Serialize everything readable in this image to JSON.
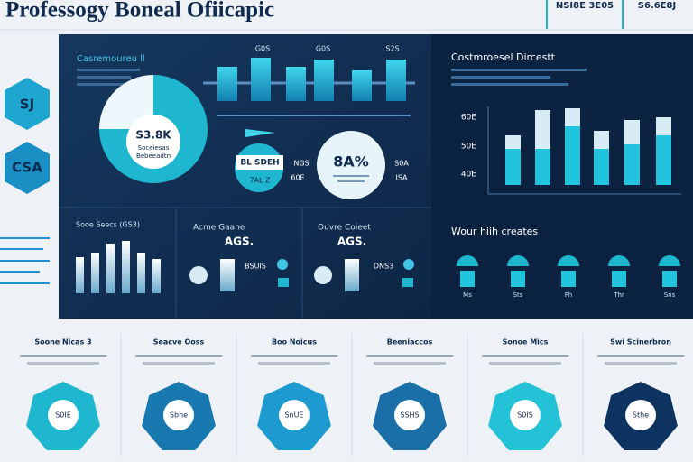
{
  "header": {
    "title": "Professogy Boneal Ofiicapic",
    "stats": [
      "NSI8E 3E05",
      "S6.6E8J"
    ]
  },
  "side": {
    "badges": [
      "SJ",
      "CSA"
    ]
  },
  "overview": {
    "title": "Casremoureu ll",
    "pie": {
      "label": "S3.8K",
      "lines": [
        "Soceiesas",
        "Bebeeadtn"
      ],
      "values": [
        75,
        25
      ]
    },
    "bars": {
      "labels": [
        "G0S",
        "G0S",
        "S2S"
      ],
      "values": [
        38,
        48,
        38,
        46,
        34,
        46
      ]
    },
    "tag": "BL SDEH",
    "tag_values": [
      "NGS",
      "60E"
    ],
    "bubble": "7AL Z",
    "callout": {
      "value": "8A%",
      "lines": [
        "S0A",
        "ISA"
      ]
    }
  },
  "panels": [
    {
      "title": "Sooe Seecs (GS3)",
      "values": [
        40,
        45,
        55,
        58,
        45,
        38
      ]
    },
    {
      "title": "Acme Gaane",
      "value": "AGS.",
      "label": "BSUIS"
    },
    {
      "title": "Ouvre Coieet",
      "value": "AGS.",
      "label": "DNS3"
    }
  ],
  "right_chart": {
    "title": "Costmroesel Dircestt",
    "axis_labels": [
      "60E",
      "50E",
      "40E"
    ],
    "series": [
      {
        "color": "#22c3dc",
        "values": [
          40,
          40,
          65,
          40,
          45,
          55
        ]
      },
      {
        "color": "#d8ecf6",
        "values": [
          15,
          43,
          20,
          20,
          27,
          20
        ]
      }
    ]
  },
  "creates": {
    "title": "Wour hiih creates",
    "labels": [
      "Ms",
      "Sts",
      "Fh",
      "Thr",
      "Sns"
    ]
  },
  "cards": [
    {
      "title": "Soone Nicas 3",
      "label": "S0IE"
    },
    {
      "title": "Seacve Ooss",
      "label": "Sbhe"
    },
    {
      "title": "Boo Noicus",
      "label": "SnUE"
    },
    {
      "title": "Beeniaccos",
      "label": "SSHS"
    },
    {
      "title": "Sonoe Mics",
      "label": "S0IS"
    },
    {
      "title": "Swi Scinerbron",
      "label": "Sthe"
    }
  ]
}
